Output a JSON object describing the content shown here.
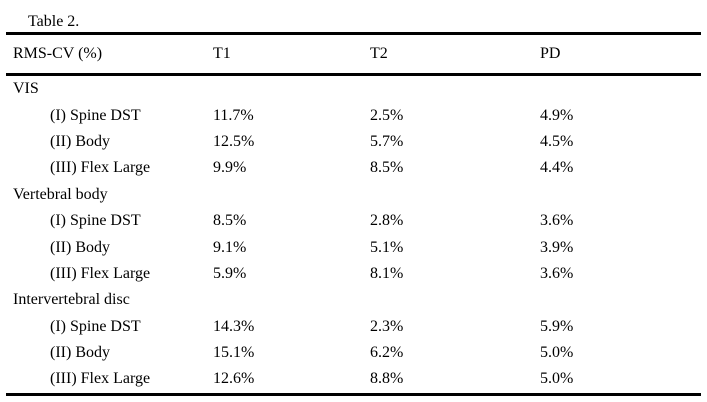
{
  "caption": "Table 2.",
  "table": {
    "columns": [
      "RMS-CV (%)",
      "T1",
      "T2",
      "PD"
    ],
    "groups": [
      {
        "label": "VIS",
        "rows": [
          {
            "label": "(I) Spine DST",
            "t1": "11.7%",
            "t2": "2.5%",
            "pd": "4.9%"
          },
          {
            "label": "(II) Body",
            "t1": "12.5%",
            "t2": "5.7%",
            "pd": "4.5%"
          },
          {
            "label": "(III) Flex Large",
            "t1": "9.9%",
            "t2": "8.5%",
            "pd": "4.4%"
          }
        ]
      },
      {
        "label": "Vertebral body",
        "rows": [
          {
            "label": "(I) Spine DST",
            "t1": "8.5%",
            "t2": "2.8%",
            "pd": "3.6%"
          },
          {
            "label": "(II) Body",
            "t1": "9.1%",
            "t2": "5.1%",
            "pd": "3.9%"
          },
          {
            "label": "(III) Flex Large",
            "t1": "5.9%",
            "t2": "8.1%",
            "pd": "3.6%"
          }
        ]
      },
      {
        "label": "Intervertebral disc",
        "rows": [
          {
            "label": "(I) Spine DST",
            "t1": "14.3%",
            "t2": "2.3%",
            "pd": "5.9%"
          },
          {
            "label": "(II) Body",
            "t1": "15.1%",
            "t2": "6.2%",
            "pd": "5.0%"
          },
          {
            "label": "(III) Flex Large",
            "t1": "12.6%",
            "t2": "8.8%",
            "pd": "5.0%"
          }
        ]
      }
    ]
  }
}
